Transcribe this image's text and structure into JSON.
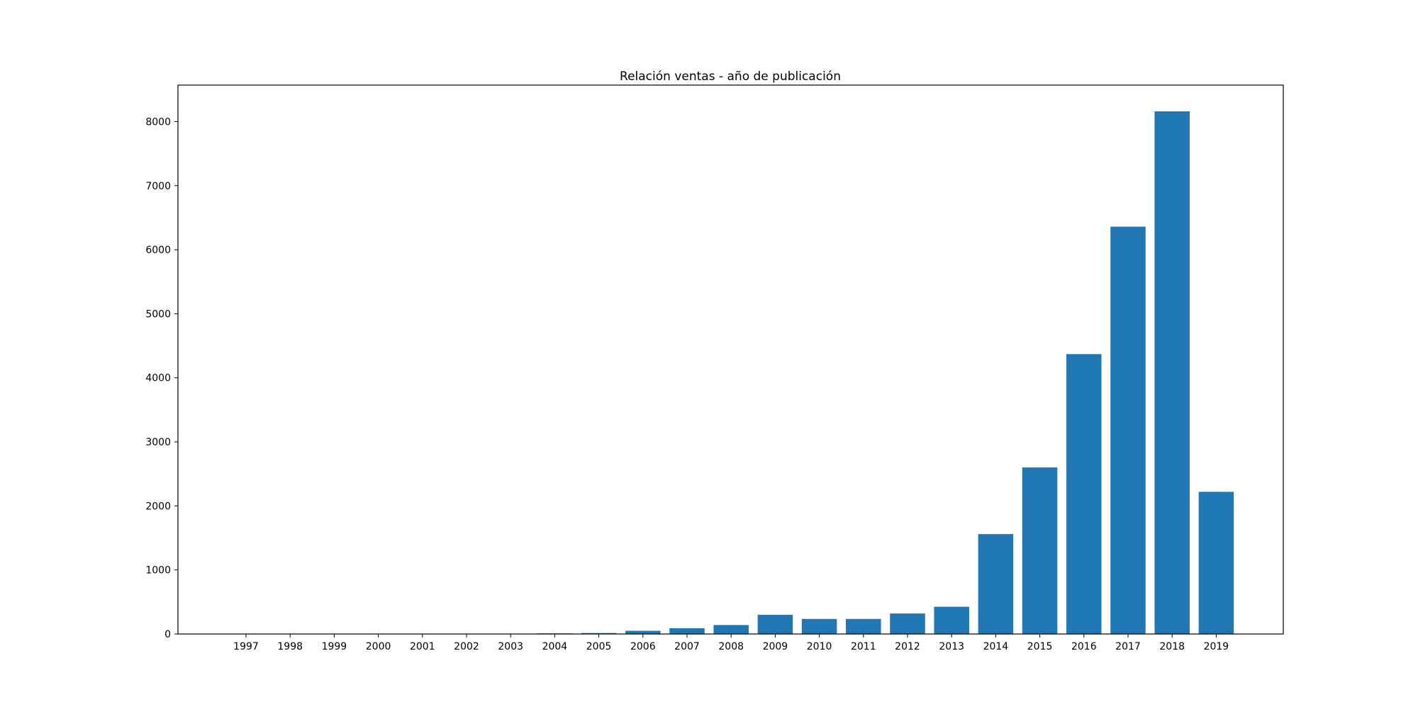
{
  "chart_data": {
    "type": "bar",
    "title": "Relación ventas - año de publicación",
    "xlabel": "",
    "ylabel": "",
    "categories": [
      "1997",
      "1998",
      "1999",
      "2000",
      "2001",
      "2002",
      "2003",
      "2004",
      "2005",
      "2006",
      "2007",
      "2008",
      "2009",
      "2010",
      "2011",
      "2012",
      "2013",
      "2014",
      "2015",
      "2016",
      "2017",
      "2018",
      "2019"
    ],
    "values": [
      1,
      1,
      1,
      1,
      1,
      1,
      1,
      10,
      15,
      50,
      90,
      140,
      300,
      235,
      235,
      320,
      425,
      1560,
      2600,
      4370,
      6360,
      8160,
      2220
    ],
    "yticks": [
      0,
      1000,
      2000,
      3000,
      4000,
      5000,
      6000,
      7000,
      8000
    ],
    "ylim": [
      0,
      8570
    ],
    "grid": false,
    "legend": "none",
    "colors": {
      "bar": "#1f77b4",
      "axis": "#000000",
      "background": "#ffffff"
    }
  }
}
